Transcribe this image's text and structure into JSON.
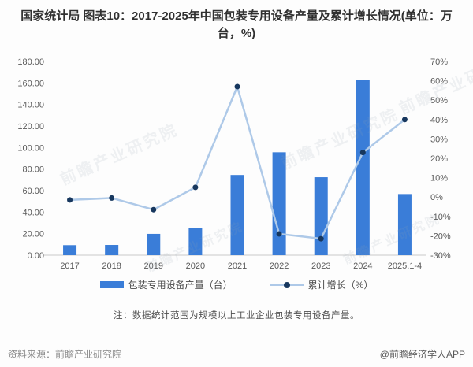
{
  "title": "国家统计局 图表10：2017-2025年中国包装专用设备产量及累计增长情况(单位：万台，%)",
  "chart_data": {
    "type": "bar+line",
    "categories": [
      "2017",
      "2018",
      "2019",
      "2020",
      "2021",
      "2022",
      "2023",
      "2024",
      "2025.1-4"
    ],
    "series": [
      {
        "name": "包装专用设备产量（台）",
        "type": "bar",
        "axis": "left",
        "color": "#3A7DD8",
        "values": [
          9.3,
          9.5,
          19.8,
          25.3,
          74.5,
          95.6,
          72.4,
          162.5,
          56.8
        ]
      },
      {
        "name": "累计增长（%）",
        "type": "line",
        "axis": "right",
        "color": "#AEC9E8",
        "marker_color": "#17375E",
        "values": [
          -1.5,
          -0.5,
          -6.5,
          5,
          57,
          -19,
          -21.5,
          23,
          40
        ]
      }
    ],
    "left_axis": {
      "min": 0,
      "max": 180,
      "ticks": [
        "180.00",
        "160.00",
        "140.00",
        "120.00",
        "100.00",
        "80.00",
        "60.00",
        "40.00",
        "20.00",
        "0.00"
      ]
    },
    "right_axis": {
      "min": -30,
      "max": 70,
      "ticks": [
        "70%",
        "60%",
        "50%",
        "40%",
        "30%",
        "20%",
        "10%",
        "0%",
        "-10%",
        "-20%",
        "-30%"
      ]
    },
    "grid": false,
    "legend_position": "bottom",
    "axis_text_color": "#595959",
    "baseline_color": "#c9c9c9"
  },
  "note": "注：数据统计范围为规模以上工业企业包装专用设备产量。",
  "footer": {
    "source": "资料来源：前瞻产业研究院",
    "credit": "@前瞻经济学人APP"
  },
  "watermark": {
    "text": "前瞻产业研究院"
  }
}
